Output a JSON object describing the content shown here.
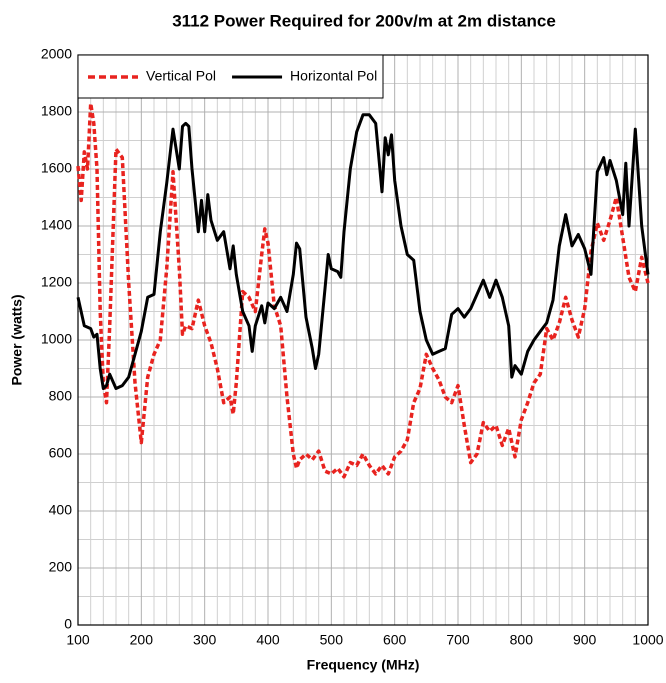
{
  "chart_data": {
    "type": "line",
    "title": "3112 Power Required for 200v/m at 2m distance",
    "x_label": "Frequency (MHz)",
    "y_label": "Power (watts)",
    "xlim": [
      100,
      1000
    ],
    "ylim": [
      0,
      2000
    ],
    "xticks": [
      100,
      200,
      300,
      400,
      500,
      600,
      700,
      800,
      900,
      1000
    ],
    "yticks": [
      0,
      200,
      400,
      600,
      800,
      1000,
      1200,
      1400,
      1600,
      1800,
      2000
    ],
    "minor_xticks": [
      120,
      140,
      160,
      180,
      220,
      240,
      260,
      280,
      320,
      340,
      360,
      380,
      420,
      440,
      460,
      480,
      520,
      540,
      560,
      580,
      620,
      640,
      660,
      680,
      720,
      740,
      760,
      780,
      820,
      840,
      860,
      880,
      920,
      940,
      960,
      980
    ],
    "minor_yticks": [
      100,
      300,
      500,
      700,
      900,
      1100,
      1300,
      1500,
      1700,
      1900
    ],
    "grid": true,
    "legend": "upper left",
    "series": [
      {
        "name": "Vertical Pol",
        "color": "#e8231f",
        "dash": true,
        "x": [
          100,
          105,
          110,
          115,
          120,
          125,
          130,
          135,
          140,
          145,
          150,
          160,
          170,
          180,
          190,
          200,
          210,
          220,
          230,
          240,
          250,
          260,
          265,
          270,
          280,
          290,
          300,
          310,
          320,
          330,
          340,
          345,
          350,
          360,
          370,
          380,
          390,
          395,
          400,
          410,
          420,
          430,
          440,
          445,
          450,
          460,
          470,
          480,
          490,
          500,
          510,
          520,
          530,
          540,
          550,
          560,
          570,
          580,
          590,
          600,
          610,
          620,
          630,
          640,
          650,
          660,
          670,
          680,
          690,
          700,
          710,
          720,
          730,
          740,
          750,
          760,
          770,
          780,
          790,
          800,
          810,
          820,
          830,
          840,
          850,
          860,
          870,
          880,
          890,
          900,
          910,
          920,
          930,
          940,
          950,
          960,
          970,
          980,
          990,
          1000
        ],
        "values": [
          1610,
          1490,
          1660,
          1600,
          1830,
          1760,
          1600,
          1100,
          850,
          780,
          1050,
          1670,
          1640,
          1200,
          850,
          640,
          870,
          950,
          1000,
          1250,
          1590,
          1250,
          1020,
          1050,
          1040,
          1140,
          1050,
          990,
          900,
          780,
          800,
          740,
          850,
          1170,
          1150,
          1100,
          1300,
          1390,
          1340,
          1120,
          1050,
          800,
          600,
          550,
          580,
          600,
          580,
          610,
          540,
          530,
          550,
          520,
          570,
          560,
          600,
          560,
          530,
          560,
          530,
          590,
          610,
          650,
          780,
          830,
          950,
          900,
          860,
          800,
          780,
          840,
          700,
          570,
          600,
          710,
          680,
          700,
          630,
          690,
          590,
          720,
          780,
          850,
          880,
          1040,
          1000,
          1060,
          1150,
          1070,
          1010,
          1110,
          1310,
          1410,
          1350,
          1420,
          1500,
          1360,
          1220,
          1170,
          1290,
          1200
        ]
      },
      {
        "name": "Horizontal Pol",
        "color": "#000000",
        "dash": false,
        "x": [
          100,
          110,
          120,
          125,
          130,
          135,
          140,
          145,
          150,
          160,
          170,
          180,
          190,
          200,
          210,
          220,
          230,
          240,
          250,
          260,
          265,
          270,
          275,
          280,
          290,
          295,
          300,
          305,
          310,
          320,
          330,
          340,
          345,
          350,
          360,
          370,
          375,
          380,
          390,
          395,
          400,
          410,
          420,
          430,
          440,
          445,
          450,
          460,
          470,
          475,
          480,
          490,
          495,
          500,
          510,
          515,
          520,
          530,
          540,
          550,
          560,
          570,
          580,
          585,
          590,
          595,
          600,
          610,
          620,
          630,
          640,
          650,
          660,
          670,
          680,
          690,
          700,
          710,
          720,
          730,
          740,
          750,
          760,
          770,
          780,
          785,
          790,
          800,
          810,
          820,
          830,
          840,
          850,
          860,
          870,
          880,
          890,
          900,
          910,
          920,
          930,
          935,
          940,
          950,
          960,
          965,
          970,
          980,
          990,
          1000
        ],
        "values": [
          1150,
          1050,
          1040,
          1010,
          1020,
          900,
          830,
          840,
          880,
          830,
          840,
          870,
          950,
          1030,
          1150,
          1160,
          1380,
          1550,
          1740,
          1600,
          1750,
          1760,
          1750,
          1600,
          1380,
          1490,
          1380,
          1510,
          1420,
          1350,
          1380,
          1250,
          1330,
          1230,
          1100,
          1050,
          960,
          1050,
          1120,
          1060,
          1130,
          1110,
          1150,
          1100,
          1230,
          1340,
          1320,
          1080,
          970,
          900,
          950,
          1180,
          1300,
          1250,
          1240,
          1220,
          1380,
          1600,
          1730,
          1790,
          1790,
          1760,
          1520,
          1710,
          1650,
          1720,
          1560,
          1400,
          1300,
          1280,
          1100,
          1000,
          950,
          960,
          970,
          1090,
          1110,
          1080,
          1110,
          1160,
          1210,
          1150,
          1210,
          1150,
          1050,
          870,
          910,
          880,
          960,
          1000,
          1030,
          1060,
          1140,
          1330,
          1440,
          1330,
          1370,
          1320,
          1230,
          1590,
          1640,
          1580,
          1630,
          1560,
          1440,
          1620,
          1400,
          1740,
          1400,
          1230
        ]
      }
    ]
  }
}
